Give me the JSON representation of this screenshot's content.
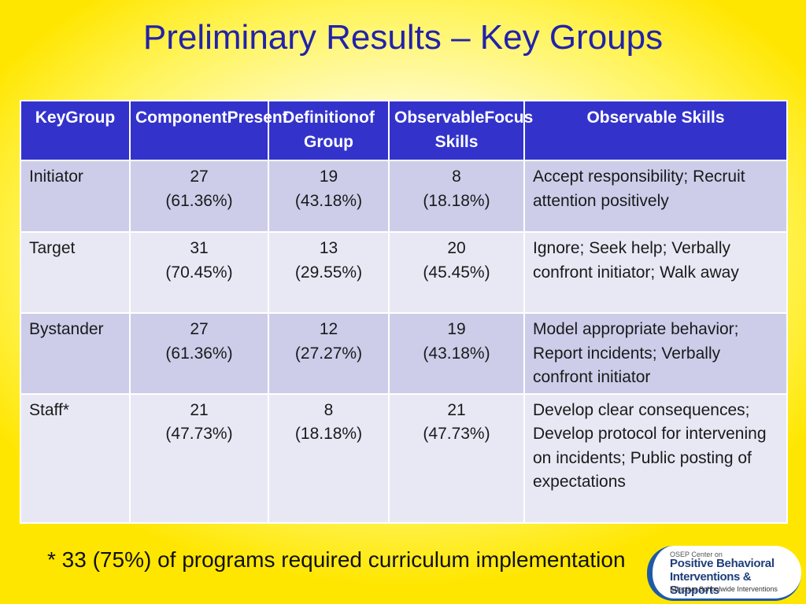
{
  "title": "Preliminary Results – Key Groups",
  "table": {
    "headers": [
      [
        "Key",
        "Group"
      ],
      [
        "Component",
        "Present"
      ],
      [
        "Definition",
        "of Group"
      ],
      [
        "Observable",
        "Focus Skills"
      ],
      [
        "Observable Skills"
      ]
    ],
    "rows": [
      {
        "group": "Initiator",
        "component": [
          "27",
          "(61.36%)"
        ],
        "definition": [
          "19",
          "(43.18%)"
        ],
        "focus": [
          "8",
          "(18.18%)"
        ],
        "skills": "Accept responsibility; Recruit attention positively"
      },
      {
        "group": "Target",
        "component": [
          "31",
          "(70.45%)"
        ],
        "definition": [
          "13",
          "(29.55%)"
        ],
        "focus": [
          "20",
          "(45.45%)"
        ],
        "skills": "Ignore; Seek help; Verbally confront initiator; Walk away"
      },
      {
        "group": "Bystander",
        "component": [
          "27",
          "(61.36%)"
        ],
        "definition": [
          "12",
          "(27.27%)"
        ],
        "focus": [
          "19",
          "(43.18%)"
        ],
        "skills": "Model appropriate behavior; Report incidents; Verbally confront initiator"
      },
      {
        "group": "Staff*",
        "component": [
          "21",
          "(47.73%)"
        ],
        "definition": [
          "8",
          "(18.18%)"
        ],
        "focus": [
          "21",
          "(47.73%)"
        ],
        "skills": "Develop clear consequences; Develop protocol for intervening on incidents; Public posting of expectations"
      }
    ]
  },
  "footnote": "* 33 (75%) of programs required curriculum implementation",
  "logo": {
    "line1": "OSEP Center on",
    "line2": "Positive Behavioral",
    "line3": "Interventions & Supports",
    "line4": "Effective Schoolwide Interventions"
  },
  "colors": {
    "title": "#2222aa",
    "header_bg": "#3333cc",
    "row_odd": "#cdcdea",
    "row_even": "#e8e8f5",
    "background": "#fff45a"
  }
}
